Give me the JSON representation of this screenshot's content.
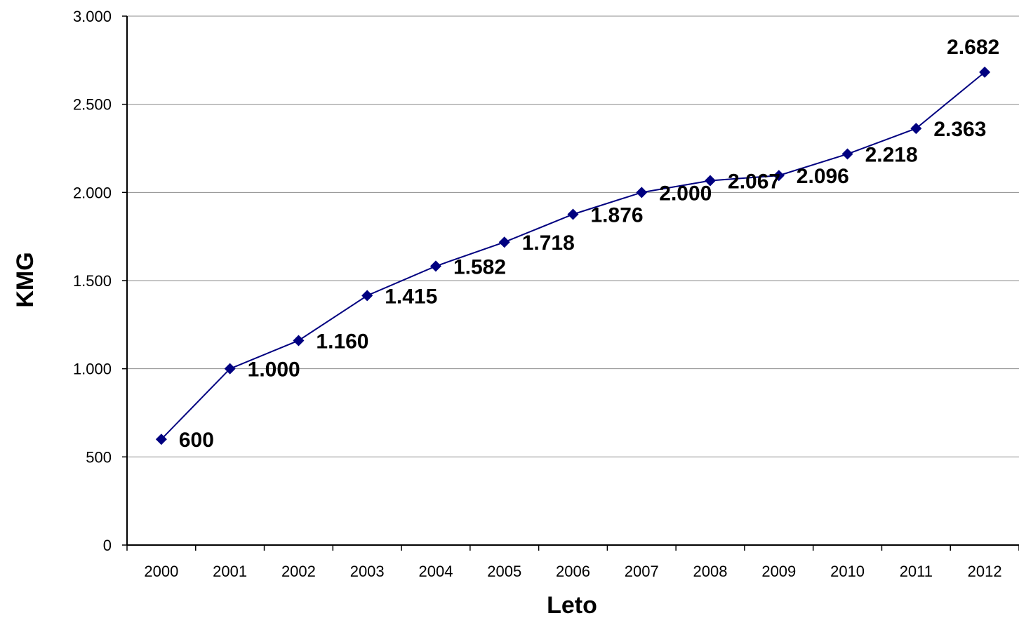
{
  "chart_data": {
    "type": "line",
    "title": "",
    "xlabel": "Leto",
    "ylabel": "KMG",
    "categories": [
      "2000",
      "2001",
      "2002",
      "2003",
      "2004",
      "2005",
      "2006",
      "2007",
      "2008",
      "2009",
      "2010",
      "2011",
      "2012"
    ],
    "series": [
      {
        "name": "",
        "values": [
          600,
          1000,
          1160,
          1415,
          1582,
          1718,
          1876,
          2000,
          2067,
          2096,
          2218,
          2363,
          2682
        ],
        "data_labels": [
          "600",
          "1.000",
          "1.160",
          "1.415",
          "1.582",
          "1.718",
          "1.876",
          "2.000",
          "2.067",
          "2.096",
          "2.218",
          "2.363",
          "2.682"
        ],
        "color": "#000080",
        "marker": "diamond"
      }
    ],
    "ylim": [
      0,
      3000
    ],
    "yticks": [
      0,
      500,
      1000,
      1500,
      2000,
      2500,
      3000
    ],
    "ytick_labels": [
      "0",
      "500",
      "1.000",
      "1.500",
      "2.000",
      "2.500",
      "3.000"
    ],
    "grid": "horizontal",
    "legend": "none"
  }
}
